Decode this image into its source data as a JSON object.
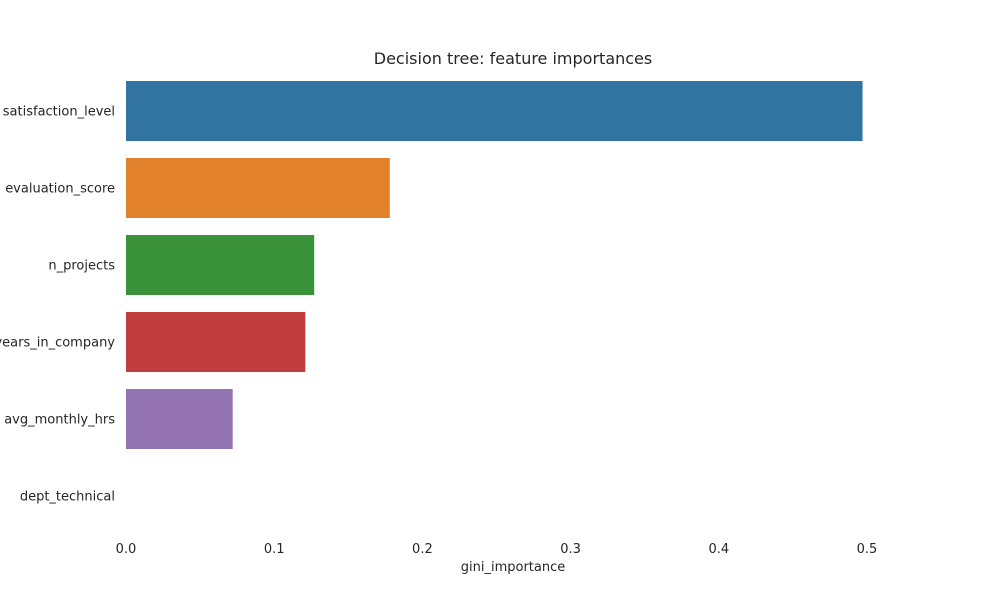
{
  "chart_data": {
    "type": "bar",
    "orientation": "horizontal",
    "title": "Decision tree: feature importances",
    "xlabel": "gini_importance",
    "ylabel": "",
    "categories": [
      "satisfaction_level",
      "evaluation_score",
      "n_projects",
      "years_in_company",
      "avg_monthly_hrs",
      "dept_technical"
    ],
    "values": [
      0.497,
      0.178,
      0.127,
      0.121,
      0.072,
      0.0
    ],
    "colors": [
      "#3274a1",
      "#e1812c",
      "#3a923a",
      "#c03d3e",
      "#9372b2",
      "#845b53"
    ],
    "xlim": [
      0.0,
      0.5
    ],
    "xticks": [
      0.0,
      0.1,
      0.2,
      0.3,
      0.4,
      0.5
    ],
    "xtick_labels": [
      "0.0",
      "0.1",
      "0.2",
      "0.3",
      "0.4",
      "0.5"
    ],
    "grid": false,
    "legend": false
  }
}
